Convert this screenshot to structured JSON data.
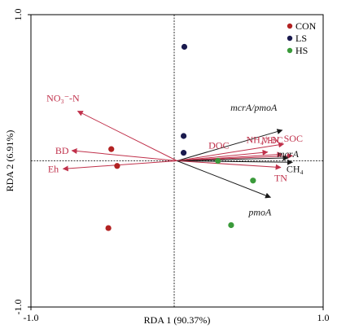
{
  "chart_data": {
    "type": "scatter",
    "subtype": "rda-biplot",
    "xlabel": "RDA 1 (90.37%)",
    "ylabel": "RDA 2 (6.91%)",
    "xlim": [
      -1.0,
      1.0
    ],
    "ylim": [
      -1.0,
      1.0
    ],
    "x_ticks": [
      {
        "value": -1.0,
        "label": "-1.0"
      },
      {
        "value": 1.0,
        "label": "1.0"
      }
    ],
    "y_ticks": [
      {
        "value": 1.0,
        "label": "1.0"
      },
      {
        "value": -1.0,
        "label": "-1.0"
      }
    ],
    "zero_lines": "dashed",
    "legend_position": "top-right",
    "series": [
      {
        "name": "CON",
        "color": "#b22222",
        "points": [
          [
            -0.45,
            0.08
          ],
          [
            -0.41,
            -0.035
          ],
          [
            -0.47,
            -0.46
          ]
        ]
      },
      {
        "name": "LS",
        "color": "#1a1a4e",
        "points": [
          [
            0.05,
            0.78
          ],
          [
            0.045,
            0.17
          ],
          [
            0.045,
            0.055
          ]
        ]
      },
      {
        "name": "HS",
        "color": "#3a9a3a",
        "points": [
          [
            0.28,
            0.0
          ],
          [
            0.52,
            -0.135
          ],
          [
            0.37,
            -0.44
          ]
        ]
      }
    ],
    "vectors": [
      {
        "label": "NO₃⁻-N",
        "x": -0.68,
        "y": 0.34,
        "color": "#c0314b"
      },
      {
        "label": "BD",
        "x": -0.72,
        "y": 0.07,
        "color": "#c0314b"
      },
      {
        "label": "Eh",
        "x": -0.78,
        "y": -0.055,
        "color": "#c0314b"
      },
      {
        "label": "mcrA/pmoA",
        "x": 0.72,
        "y": 0.21,
        "color": "#1a1a1a",
        "italic": true
      },
      {
        "label": "MBC",
        "x": 0.73,
        "y": 0.115,
        "color": "#c0314b"
      },
      {
        "label": "DOC",
        "x": 0.62,
        "y": 0.06,
        "color": "#c0314b"
      },
      {
        "label": "NH₄⁺-N",
        "x": 0.72,
        "y": 0.045,
        "color": "#c0314b"
      },
      {
        "label": "SOC",
        "x": 0.79,
        "y": 0.035,
        "color": "#c0314b"
      },
      {
        "label": "mcrA",
        "x": 0.76,
        "y": 0.02,
        "color": "#1a1a1a",
        "italic": true
      },
      {
        "label": "CH₄",
        "x": 0.79,
        "y": -0.01,
        "color": "#1a1a1a"
      },
      {
        "label": "TN",
        "x": 0.71,
        "y": -0.045,
        "color": "#c0314b"
      },
      {
        "label": "pmoA",
        "x": 0.64,
        "y": -0.25,
        "color": "#1a1a1a",
        "italic": true
      }
    ]
  }
}
